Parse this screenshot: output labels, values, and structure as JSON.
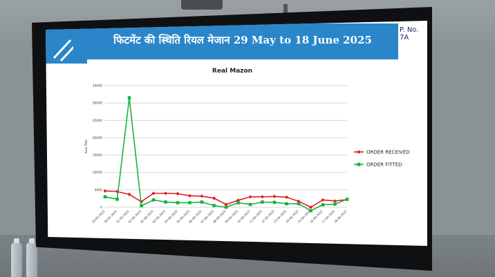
{
  "slide": {
    "title": "फिटमेंट की स्थिति रियल मेजान 29 May to 18 June 2025",
    "page_no": "P. No. 7A"
  },
  "chart_data": {
    "type": "line",
    "title": "Real Mazon",
    "ylabel": "Axis Title",
    "ylim": [
      0,
      35000
    ],
    "yticks": [
      0,
      5000,
      10000,
      15000,
      20000,
      25000,
      30000,
      35000
    ],
    "grid": true,
    "legend": "right",
    "categories": [
      "29-05-2025",
      "30-05-2025",
      "31-05-2025",
      "01-06-2025",
      "02-06-2025",
      "03-06-2025",
      "04-06-2025",
      "05-06-2025",
      "06-06-2025",
      "07-06-2025",
      "08-06-2025",
      "09-06-2025",
      "10-06-2025",
      "11-06-2025",
      "12-06-2025",
      "13-06-2025",
      "14-06-2025",
      "15-06-2025",
      "16-06-2025",
      "17-06-2025",
      "18-06-2025"
    ],
    "series": [
      {
        "name": "ORDER RECEIVED",
        "color": "#e01c24",
        "marker": "diamond",
        "values": [
          4700,
          4500,
          3700,
          1600,
          4000,
          4000,
          3900,
          3300,
          3200,
          2600,
          800,
          2000,
          3000,
          3000,
          3100,
          2900,
          1700,
          0,
          2100,
          1800,
          2200
        ]
      },
      {
        "name": "ORDER FITTED",
        "color": "#17b33a",
        "marker": "square",
        "values": [
          3000,
          2300,
          31500,
          400,
          2100,
          1500,
          1300,
          1300,
          1500,
          500,
          0,
          1300,
          800,
          1500,
          1400,
          1000,
          1000,
          -1000,
          700,
          900,
          2300
        ]
      }
    ]
  }
}
